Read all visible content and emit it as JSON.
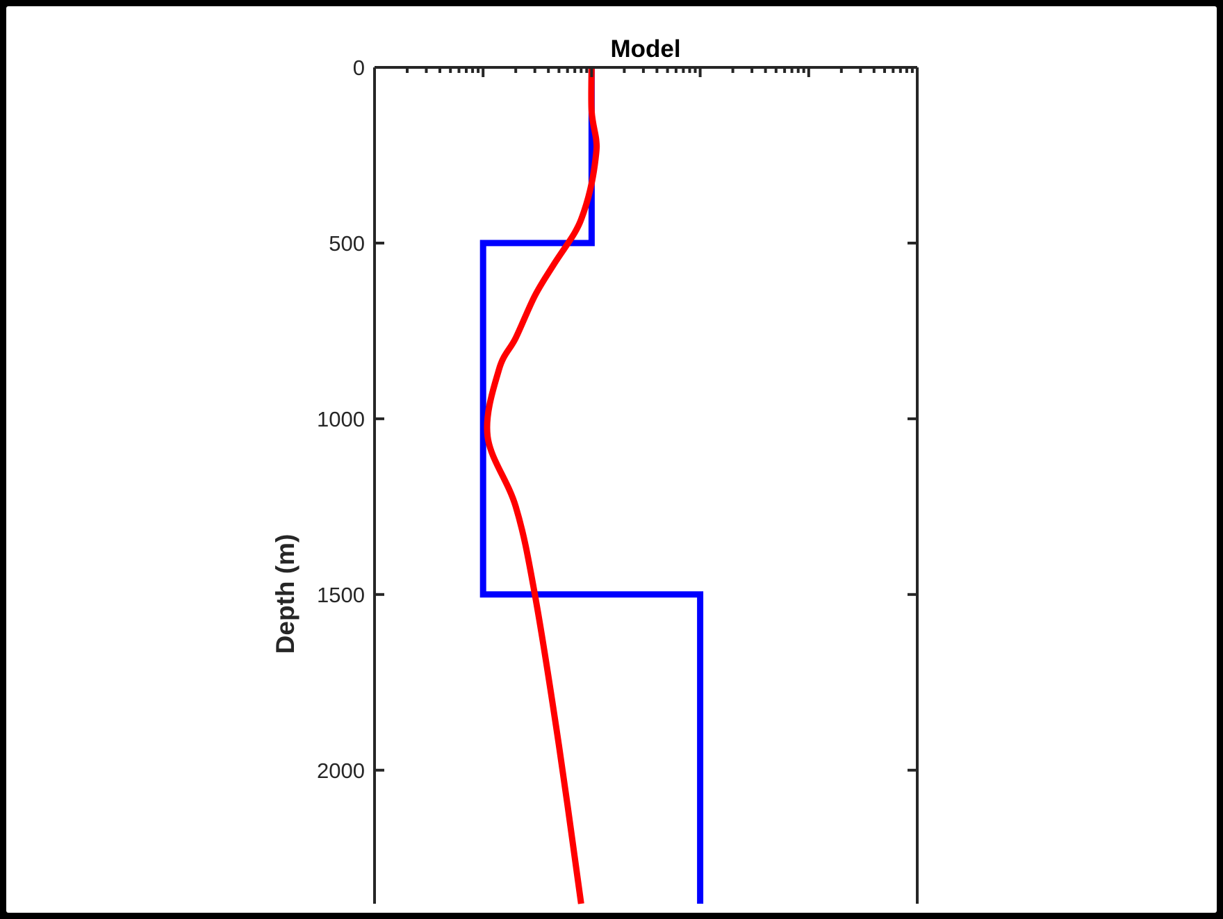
{
  "chart_data": {
    "type": "line",
    "title": "Model",
    "xlabel": "",
    "ylabel": "Depth (m)",
    "x_scale": "log",
    "xlim": [
      1,
      100000
    ],
    "ylim": [
      0,
      2380
    ],
    "y_reversed": true,
    "y_ticks": [
      0,
      500,
      1000,
      1500,
      2000
    ],
    "y_tick_labels": [
      "0",
      "500",
      "1000",
      "1500",
      "2000"
    ],
    "x_tick_labels_shown": false,
    "grid": false,
    "legend": "none",
    "series": [
      {
        "color": "#0000ff",
        "style": "step",
        "points": [
          [
            100,
            0
          ],
          [
            100,
            500
          ],
          [
            10,
            500
          ],
          [
            10,
            1500
          ],
          [
            1000,
            1500
          ],
          [
            1000,
            2380
          ]
        ]
      },
      {
        "color": "#ff0000",
        "style": "smooth",
        "points": [
          [
            100,
            0
          ],
          [
            100,
            125
          ],
          [
            110,
            205
          ],
          [
            110,
            245
          ],
          [
            100,
            330
          ],
          [
            85,
            410
          ],
          [
            70,
            470
          ],
          [
            45,
            560
          ],
          [
            30,
            650
          ],
          [
            20,
            770
          ],
          [
            14,
            860
          ],
          [
            11,
            1050
          ],
          [
            20,
            1250
          ],
          [
            30,
            1500
          ],
          [
            50,
            1930
          ],
          [
            80,
            2380
          ]
        ]
      }
    ]
  }
}
